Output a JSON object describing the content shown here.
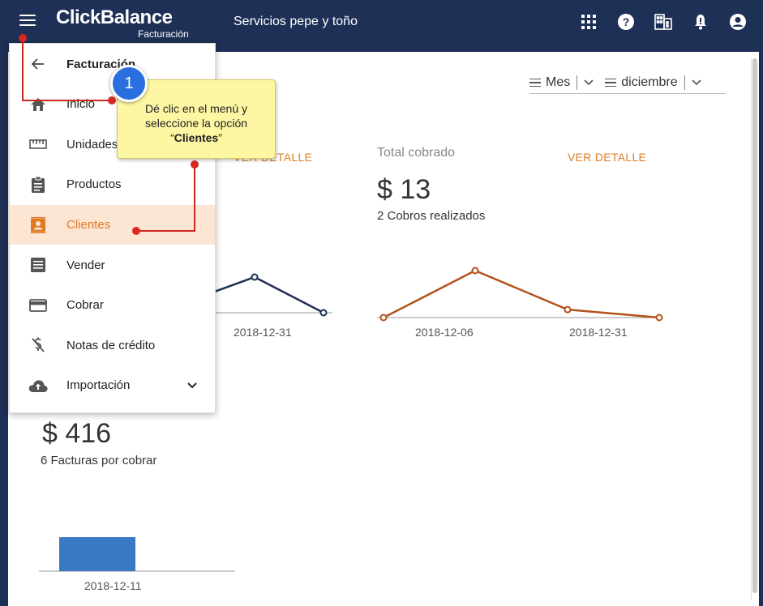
{
  "app": {
    "logo": "ClickBalance",
    "logo_sub": "Facturación",
    "company": "Servicios pepe y toño"
  },
  "topbar_icons": [
    "apps-grid-icon",
    "help-icon",
    "building-icon",
    "notifications-icon",
    "account-icon"
  ],
  "filters": {
    "period": "Mes",
    "month": "diciembre"
  },
  "cards": {
    "left_detail_link": "VER DETALLE",
    "cobrado": {
      "title": "Total cobrado",
      "detail_link": "VER DETALLE",
      "amount": "$ 13",
      "count_text": "2 Cobros realizados"
    },
    "por_cobrar": {
      "amount": "$ 416",
      "count_text": "6 Facturas por cobrar"
    }
  },
  "charts": {
    "left_line_label": "2018-12-31",
    "cobrado_labels": [
      "2018-12-06",
      "2018-12-31"
    ],
    "bar_label": "2018-12-11"
  },
  "chart_data": [
    {
      "type": "line",
      "x": [
        "",
        "2018-12-31",
        ""
      ],
      "series": [
        {
          "values": [
            null,
            1,
            0
          ]
        }
      ],
      "color": "#1f3056"
    },
    {
      "type": "line",
      "x": [
        "",
        "2018-12-06",
        "",
        "2018-12-31"
      ],
      "series": [
        {
          "values": [
            0,
            1,
            0.17,
            0
          ]
        }
      ],
      "color": "#b4521a"
    },
    {
      "type": "bar",
      "categories": [
        "2018-12-11"
      ],
      "values": [
        1
      ],
      "color": "#3a79c4"
    }
  ],
  "drawer": {
    "title": "Facturación",
    "items": [
      {
        "label": "Inicio",
        "icon": "home-icon"
      },
      {
        "label": "Unidades",
        "icon": "ruler-icon"
      },
      {
        "label": "Productos",
        "icon": "clipboard-icon"
      },
      {
        "label": "Clientes",
        "icon": "contact-card-icon",
        "active": true
      },
      {
        "label": "Vender",
        "icon": "receipt-icon"
      },
      {
        "label": "Cobrar",
        "icon": "credit-card-icon"
      },
      {
        "label": "Notas de crédito",
        "icon": "money-off-icon"
      },
      {
        "label": "Importación",
        "icon": "cloud-upload-icon"
      }
    ]
  },
  "annotation": {
    "step": "1",
    "text_line1": "Dé clic en el menú y",
    "text_line2": "seleccione la opción",
    "text_bold": "Clientes",
    "quote_open": "“",
    "quote_close": "”"
  }
}
